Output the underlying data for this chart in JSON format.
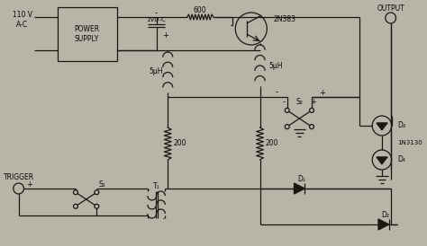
{
  "bg_color": "#b8b4a8",
  "line_color": "#1a1810",
  "text_color": "#0a0808",
  "figsize": [
    4.74,
    2.74
  ],
  "dpi": 100,
  "labels": {
    "power_input": "110 V\nA-C",
    "power_supply": "POWER\nSUPPLY",
    "ivdc": "1VD-C",
    "res600": "600",
    "transistor": "2N383",
    "ind1": "5μH",
    "ind2": "5μH",
    "s2": "S₂",
    "output": "OUTPUT",
    "d3": "D₃",
    "d4": "D₄",
    "in3130": "1N3130",
    "res200a": "200",
    "res200b": "200",
    "trigger": "TRIGGER",
    "s1": "S₁",
    "t1": "T₁",
    "d1": "D₁",
    "d2": "D₂",
    "minus": "-",
    "plus": "+"
  }
}
